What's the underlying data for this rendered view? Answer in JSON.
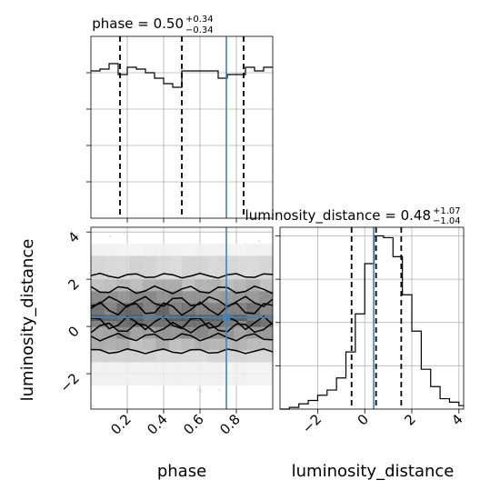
{
  "chart_data": [
    {
      "type": "histogram",
      "panel": "phase-marginal",
      "title": {
        "main": "phase = 0.50",
        "sup": "+0.34",
        "sub": "−0.34"
      },
      "xlim": [
        0.0,
        1.0
      ],
      "bin_edges": [
        0.0,
        0.05,
        0.1,
        0.15,
        0.2,
        0.25,
        0.3,
        0.35,
        0.4,
        0.45,
        0.5,
        0.55,
        0.6,
        0.65,
        0.7,
        0.75,
        0.8,
        0.85,
        0.9,
        0.95,
        1.0
      ],
      "counts": [
        0.81,
        0.82,
        0.85,
        0.79,
        0.83,
        0.82,
        0.8,
        0.77,
        0.74,
        0.72,
        0.81,
        0.81,
        0.81,
        0.81,
        0.77,
        0.79,
        0.79,
        0.83,
        0.81,
        0.83
      ],
      "ylim": [
        0,
        1.0
      ],
      "quantiles": [
        0.16,
        0.5,
        0.84
      ],
      "truth": 0.745
    },
    {
      "type": "heatmap",
      "panel": "2d-density",
      "xlabel": "phase",
      "ylabel": "luminosity_distance",
      "xlim": [
        0.0,
        1.0
      ],
      "ylim": [
        -3.5,
        4.2
      ],
      "x_ticks": [
        0.2,
        0.4,
        0.6,
        0.8
      ],
      "x_tick_labels": [
        "0.2",
        "0.4",
        "0.6",
        "0.8"
      ],
      "y_ticks": [
        -2,
        0,
        2,
        4
      ],
      "y_tick_labels": [
        "−2",
        "0",
        "2",
        "4"
      ],
      "y_bins": [
        -2.5,
        -1.5,
        -1.0,
        -0.5,
        0.0,
        0.25,
        0.5,
        1.0,
        1.5,
        2.0,
        3.0
      ],
      "y_density": [
        0.08,
        0.25,
        0.45,
        0.65,
        0.85,
        0.95,
        0.85,
        0.65,
        0.45,
        0.25,
        0.08
      ],
      "contour_levels": [
        {
          "name": "outer",
          "y_low": -1.05,
          "y_high": 2.15
        },
        {
          "name": "middle",
          "y_low": -0.45,
          "y_high": 1.55
        },
        {
          "name": "inner",
          "y_low": -0.05,
          "y_high": 1.05
        },
        {
          "name": "core",
          "y_low": 0.15,
          "y_high": 0.75
        }
      ],
      "truth": {
        "x": 0.745,
        "y": 0.38
      }
    },
    {
      "type": "histogram",
      "panel": "luminosity-distance-marginal",
      "title": {
        "main": "luminosity_distance = 0.48",
        "sup": "+1.07",
        "sub": "−1.04"
      },
      "xlabel": "luminosity_distance",
      "xlim": [
        -3.6,
        4.2
      ],
      "x_ticks": [
        -2,
        0,
        2,
        4
      ],
      "x_tick_labels": [
        "−2",
        "0",
        "2",
        "4"
      ],
      "bin_edges": [
        -3.6,
        -3.2,
        -2.8,
        -2.4,
        -2.0,
        -1.6,
        -1.2,
        -0.8,
        -0.4,
        0.0,
        0.4,
        0.8,
        1.2,
        1.6,
        2.0,
        2.4,
        2.8,
        3.2,
        3.6,
        4.0,
        4.2
      ],
      "counts": [
        0.0,
        0.01,
        0.03,
        0.05,
        0.08,
        0.11,
        0.18,
        0.33,
        0.55,
        0.84,
        1.0,
        0.99,
        0.88,
        0.66,
        0.45,
        0.23,
        0.13,
        0.06,
        0.04,
        0.02
      ],
      "ylim": [
        0,
        1.05
      ],
      "quantiles": [
        -0.56,
        0.48,
        1.55
      ],
      "truth": 0.38
    }
  ]
}
